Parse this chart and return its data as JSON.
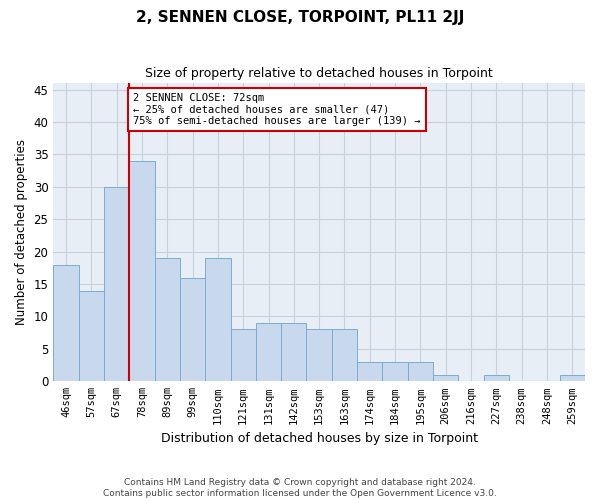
{
  "title": "2, SENNEN CLOSE, TORPOINT, PL11 2JJ",
  "subtitle": "Size of property relative to detached houses in Torpoint",
  "xlabel": "Distribution of detached houses by size in Torpoint",
  "ylabel": "Number of detached properties",
  "categories": [
    "46sqm",
    "57sqm",
    "67sqm",
    "78sqm",
    "89sqm",
    "99sqm",
    "110sqm",
    "121sqm",
    "131sqm",
    "142sqm",
    "153sqm",
    "163sqm",
    "174sqm",
    "184sqm",
    "195sqm",
    "206sqm",
    "216sqm",
    "227sqm",
    "238sqm",
    "248sqm",
    "259sqm"
  ],
  "values": [
    18,
    14,
    30,
    34,
    19,
    16,
    19,
    8,
    9,
    9,
    8,
    8,
    3,
    3,
    3,
    1,
    0,
    1,
    0,
    0,
    1
  ],
  "bar_color": "#c9d9ed",
  "bar_edge_color": "#7aadd4",
  "grid_color": "#c8d0dc",
  "background_color": "#e8eef6",
  "vline_x": 2.5,
  "vline_color": "#cc0000",
  "annotation_text": "2 SENNEN CLOSE: 72sqm\n← 25% of detached houses are smaller (47)\n75% of semi-detached houses are larger (139) →",
  "annotation_box_color": "#ffffff",
  "annotation_box_edge": "#cc0000",
  "ylim": [
    0,
    46
  ],
  "yticks": [
    0,
    5,
    10,
    15,
    20,
    25,
    30,
    35,
    40,
    45
  ],
  "footnote1": "Contains HM Land Registry data © Crown copyright and database right 2024.",
  "footnote2": "Contains public sector information licensed under the Open Government Licence v3.0."
}
